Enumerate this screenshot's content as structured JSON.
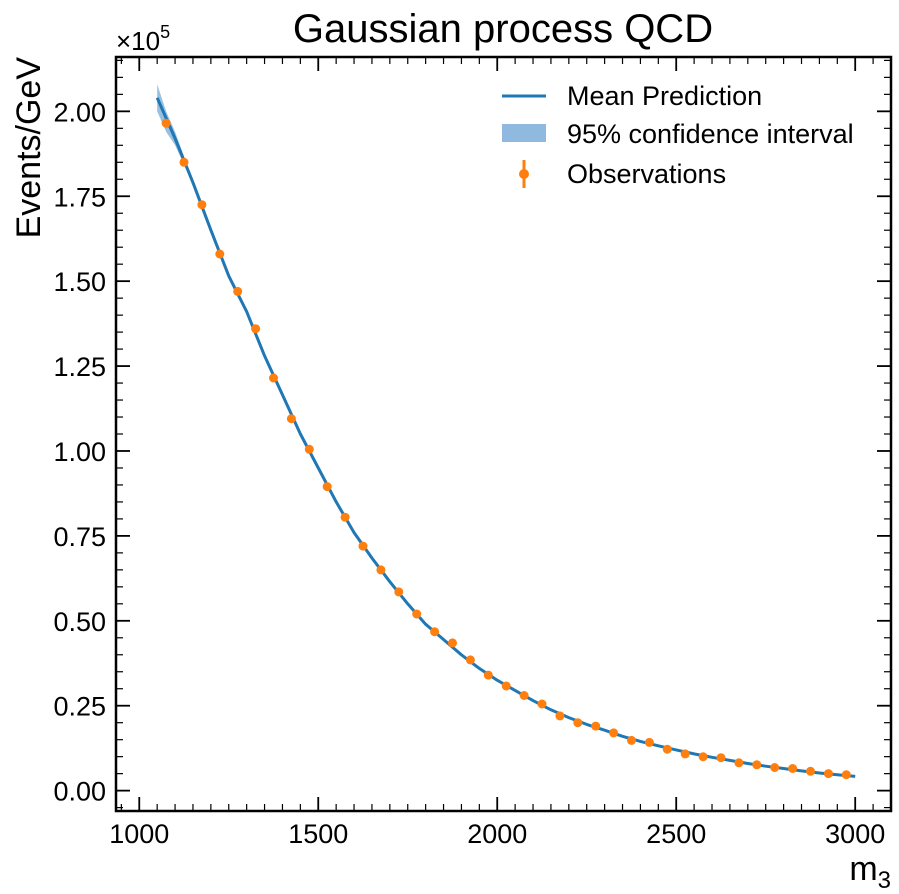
{
  "chart_data": {
    "type": "line",
    "title": "Gaussian process QCD",
    "xlabel": "m",
    "xlabel_sub": "3",
    "ylabel": "Events/GeV",
    "offset_text": "×10",
    "offset_exp": "5",
    "xlim": [
      935,
      3100
    ],
    "ylim": [
      -0.06,
      2.16
    ],
    "x_ticks": [
      1000,
      1500,
      2000,
      2500,
      3000
    ],
    "x_tick_labels": [
      "1000",
      "1500",
      "2000",
      "2500",
      "3000"
    ],
    "y_ticks": [
      0.0,
      0.25,
      0.5,
      0.75,
      1.0,
      1.25,
      1.5,
      1.75,
      2.0
    ],
    "y_tick_labels": [
      "0.00",
      "0.25",
      "0.50",
      "0.75",
      "1.00",
      "1.25",
      "1.50",
      "1.75",
      "2.00"
    ],
    "legend_position": "top-right",
    "colors": {
      "mean": "#1f77b4",
      "band": "#8fb9de",
      "observations": "#ff7f0e"
    },
    "series": [
      {
        "name": "Mean Prediction",
        "kind": "line",
        "x": [
          1050,
          1100,
          1150,
          1200,
          1250,
          1300,
          1350,
          1400,
          1450,
          1500,
          1550,
          1600,
          1650,
          1700,
          1750,
          1800,
          1850,
          1900,
          1950,
          2000,
          2050,
          2100,
          2150,
          2200,
          2250,
          2300,
          2350,
          2400,
          2450,
          2500,
          2550,
          2600,
          2650,
          2700,
          2750,
          2800,
          2850,
          2900,
          2950,
          3000
        ],
        "y": [
          2.04,
          1.92,
          1.79,
          1.65,
          1.515,
          1.41,
          1.28,
          1.165,
          1.05,
          0.95,
          0.85,
          0.76,
          0.685,
          0.615,
          0.55,
          0.49,
          0.445,
          0.4,
          0.36,
          0.325,
          0.295,
          0.265,
          0.238,
          0.215,
          0.195,
          0.178,
          0.16,
          0.145,
          0.132,
          0.12,
          0.108,
          0.098,
          0.089,
          0.08,
          0.072,
          0.065,
          0.058,
          0.052,
          0.047,
          0.042
        ]
      },
      {
        "name": "95% confidence interval",
        "kind": "band",
        "x": [
          1050,
          1075,
          1100,
          1150,
          1200
        ],
        "lower": [
          2.0,
          1.94,
          1.9,
          1.785,
          1.648
        ],
        "upper": [
          2.08,
          2.0,
          1.94,
          1.795,
          1.652
        ]
      },
      {
        "name": "Observations",
        "kind": "errorbar",
        "x": [
          1075,
          1125,
          1175,
          1225,
          1275,
          1325,
          1375,
          1425,
          1475,
          1525,
          1575,
          1625,
          1675,
          1725,
          1775,
          1825,
          1875,
          1925,
          1975,
          2025,
          2075,
          2125,
          2175,
          2225,
          2275,
          2325,
          2375,
          2425,
          2475,
          2525,
          2575,
          2625,
          2675,
          2725,
          2775,
          2825,
          2875,
          2925,
          2975
        ],
        "y": [
          1.965,
          1.85,
          1.725,
          1.58,
          1.47,
          1.36,
          1.215,
          1.095,
          1.005,
          0.895,
          0.805,
          0.72,
          0.65,
          0.585,
          0.52,
          0.468,
          0.435,
          0.385,
          0.34,
          0.308,
          0.28,
          0.255,
          0.22,
          0.2,
          0.19,
          0.17,
          0.148,
          0.142,
          0.122,
          0.108,
          0.1,
          0.097,
          0.082,
          0.076,
          0.068,
          0.065,
          0.057,
          0.05,
          0.047
        ]
      }
    ]
  }
}
